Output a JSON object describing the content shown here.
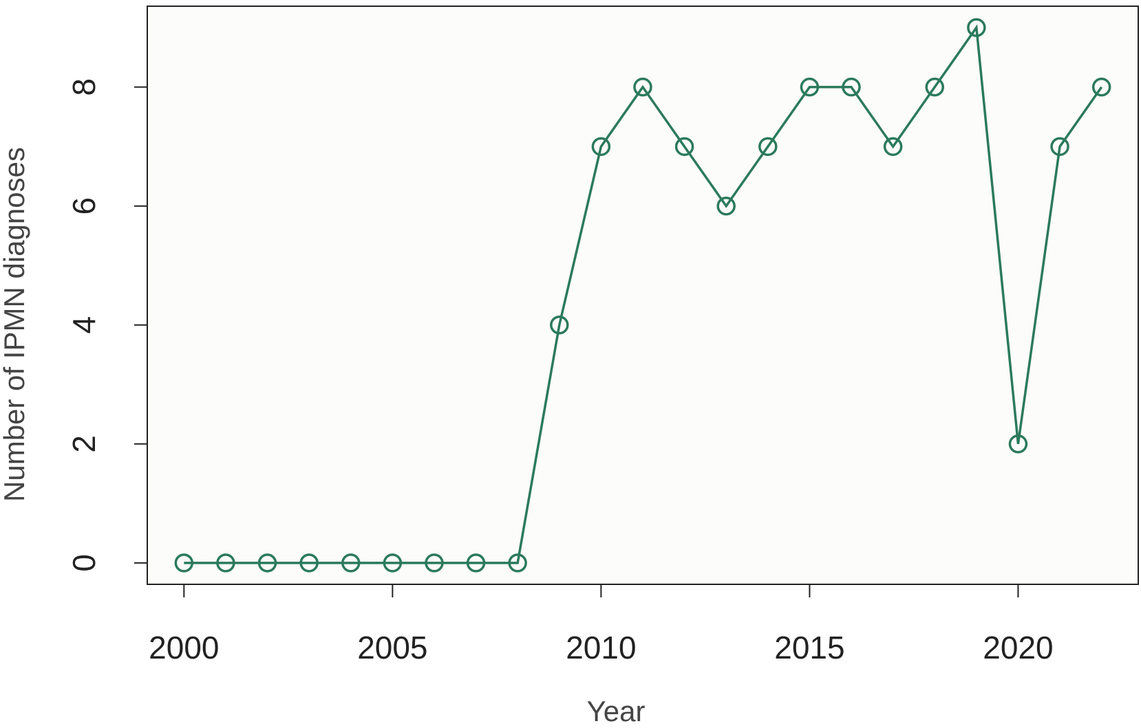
{
  "chart_data": {
    "type": "line",
    "x_label": "Year",
    "y_label": "Number of IPMN diagnoses",
    "x": [
      2000,
      2001,
      2002,
      2003,
      2004,
      2005,
      2006,
      2007,
      2008,
      2009,
      2010,
      2011,
      2012,
      2013,
      2014,
      2015,
      2016,
      2017,
      2018,
      2019,
      2020,
      2021,
      2022
    ],
    "series": [
      {
        "name": "IPMN diagnoses",
        "color": "#2b7a5b",
        "values": [
          0,
          0,
          0,
          0,
          0,
          0,
          0,
          0,
          0,
          4,
          7,
          8,
          7,
          6,
          7,
          8,
          8,
          7,
          8,
          9,
          2,
          7,
          8
        ]
      }
    ],
    "xlim": [
      1999.12,
      2022.88
    ],
    "ylim": [
      -0.36,
      9.36
    ],
    "xticks": [
      2000,
      2005,
      2010,
      2015,
      2020
    ],
    "yticks": [
      0,
      2,
      4,
      6,
      8
    ],
    "markers": true
  }
}
